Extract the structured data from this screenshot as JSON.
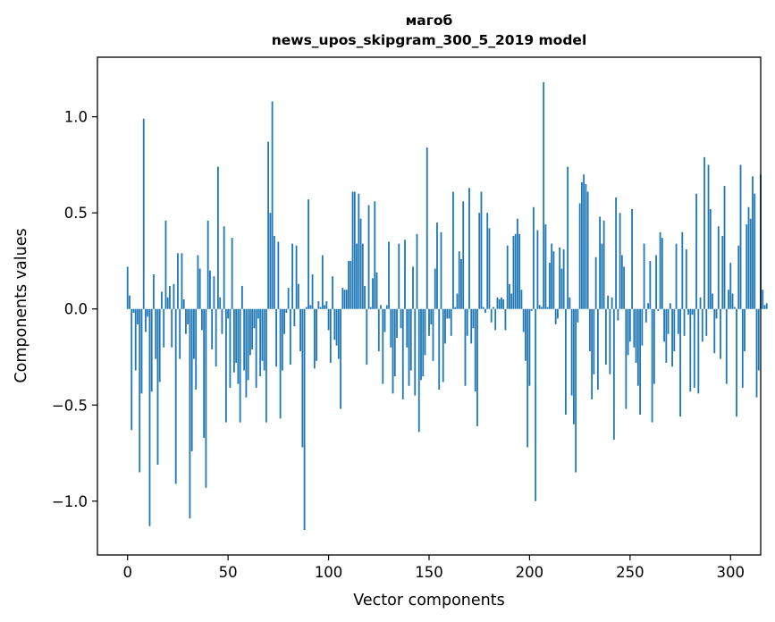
{
  "chart_data": {
    "type": "bar",
    "title": "магоб",
    "subtitle": "news_upos_skipgram_300_5_2019 model",
    "xlabel": "Vector components",
    "ylabel": "Components values",
    "xlim": [
      -15,
      315
    ],
    "ylim": [
      -1.28,
      1.31
    ],
    "xticks": [
      0,
      50,
      100,
      150,
      200,
      250,
      300
    ],
    "yticks": [
      -1.0,
      -0.5,
      0.0,
      0.5,
      1.0
    ],
    "xtick_labels": [
      "0",
      "50",
      "100",
      "150",
      "200",
      "250",
      "300"
    ],
    "ytick_labels": [
      "−1.0",
      "−0.5",
      "0.0",
      "0.5",
      "1.0"
    ],
    "grid": false,
    "bar_color": "#1f77b4",
    "series": [
      {
        "name": "магоб",
        "x_start": 0,
        "values": [
          0.22,
          0.07,
          -0.63,
          -0.02,
          -0.32,
          -0.08,
          -0.85,
          -0.44,
          0.99,
          -0.12,
          -0.04,
          -1.13,
          -0.43,
          0.18,
          -0.26,
          -0.81,
          -0.38,
          0.09,
          -0.2,
          0.46,
          0.06,
          0.12,
          -0.2,
          0.13,
          -0.91,
          0.29,
          -0.26,
          0.29,
          0.05,
          -0.13,
          -0.08,
          -1.09,
          -0.74,
          -0.26,
          -0.42,
          0.28,
          0.21,
          -0.11,
          -0.67,
          -0.93,
          0.46,
          0.2,
          -0.21,
          0.17,
          -0.3,
          0.74,
          0.06,
          -0.13,
          0.43,
          -0.59,
          -0.05,
          -0.41,
          0.37,
          -0.33,
          -0.28,
          -0.39,
          -0.59,
          0.12,
          -0.32,
          -0.46,
          -0.37,
          -0.24,
          -0.21,
          -0.1,
          -0.41,
          -0.05,
          -0.35,
          -0.27,
          -0.32,
          -0.59,
          0.87,
          0.5,
          1.08,
          0.38,
          -0.3,
          0.35,
          -0.57,
          -0.32,
          -0.13,
          -0.02,
          0.11,
          -0.29,
          0.34,
          -0.09,
          0.33,
          0.13,
          -0.22,
          -0.72,
          -1.15,
          0.01,
          0.57,
          0.02,
          0.18,
          -0.31,
          -0.27,
          0.04,
          0.01,
          0.28,
          0.02,
          0.04,
          -0.11,
          -0.28,
          0.17,
          -0.16,
          -0.19,
          -0.26,
          -0.52,
          0.11,
          0.1,
          0.1,
          0.25,
          0.25,
          0.61,
          0.61,
          0.34,
          0.6,
          0.47,
          0.34,
          0.12,
          -0.29,
          0.54,
          0.01,
          0.16,
          0.56,
          0.19,
          -0.22,
          0.02,
          -0.39,
          -0.12,
          0.02,
          0.35,
          -0.2,
          -0.44,
          -0.35,
          -0.15,
          0.34,
          -0.1,
          -0.47,
          0.36,
          -0.2,
          -0.4,
          -0.32,
          0.22,
          -0.45,
          0.39,
          -0.64,
          -0.37,
          -0.35,
          -0.24,
          0.84,
          -0.14,
          -0.08,
          -0.27,
          0.21,
          0.45,
          -0.42,
          0.4,
          -0.38,
          -0.18,
          -0.05,
          -0.05,
          -0.14,
          0.61,
          0.01,
          0.08,
          0.3,
          0.26,
          0.56,
          -0.4,
          -0.14,
          0.63,
          -0.18,
          -0.1,
          -0.43,
          -0.61,
          0.5,
          0.61,
          0.01,
          -0.02,
          0.5,
          0.42,
          -0.07,
          0.01,
          -0.11,
          0.06,
          0.05,
          0.06,
          0.05,
          -0.11,
          0.33,
          0.13,
          0.08,
          0.38,
          0.39,
          0.47,
          0.39,
          0.1,
          -0.12,
          -0.27,
          -0.72,
          -0.4,
          -0.01,
          0.53,
          -1.0,
          0.41,
          0.02,
          0.01,
          1.18,
          0.44,
          0.01,
          0.24,
          0.34,
          0.3,
          -0.08,
          -0.05,
          0.32,
          0.21,
          0.31,
          -0.55,
          0.74,
          0.06,
          -0.45,
          -0.6,
          -0.85,
          -0.07,
          0.55,
          0.66,
          0.7,
          0.65,
          0.61,
          -0.22,
          -0.47,
          -0.34,
          0.27,
          -0.42,
          0.48,
          0.34,
          0.46,
          -0.29,
          0.07,
          -0.34,
          0.06,
          -0.68,
          0.58,
          -0.06,
          0.5,
          0.28,
          0.22,
          -0.52,
          -0.24,
          -0.17,
          0.52,
          -0.2,
          -0.28,
          -0.4,
          -0.55,
          -0.19,
          0.34,
          -0.07,
          0.03,
          0.25,
          -0.59,
          -0.39,
          0.28,
          -0.01,
          0.4,
          0.37,
          -0.17,
          -0.28,
          -0.13,
          0.03,
          -0.3,
          -0.22,
          0.34,
          -0.13,
          -0.56,
          0.4,
          -0.14,
          0.31,
          -0.03,
          -0.43,
          -0.03,
          -0.41,
          0.6,
          -0.44,
          0.06,
          -0.17,
          0.79,
          -0.14,
          0.75,
          0.52,
          0.08,
          -0.23,
          -0.05,
          0.43,
          -0.26,
          0.38,
          0.64,
          -0.39,
          0.1,
          0.24,
          0.08,
          0.01,
          -0.56,
          0.33,
          0.75,
          -0.41,
          -0.22,
          0.44,
          0.53,
          0.47,
          0.69,
          0.6,
          -0.46,
          -0.32,
          0.7,
          0.1,
          0.02,
          0.03
        ]
      }
    ]
  }
}
